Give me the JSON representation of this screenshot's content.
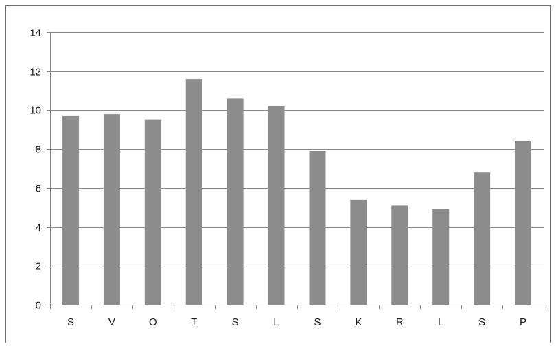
{
  "chart_data": {
    "type": "bar",
    "title": "",
    "xlabel": "",
    "ylabel": "",
    "categories": [
      "S",
      "V",
      "O",
      "T",
      "S",
      "L",
      "S",
      "K",
      "R",
      "L",
      "S",
      "P"
    ],
    "values": [
      9.7,
      9.8,
      9.5,
      11.6,
      10.6,
      10.2,
      7.9,
      5.4,
      5.1,
      4.9,
      6.8,
      8.4
    ],
    "ylim": [
      0,
      14
    ],
    "yticks": [
      0,
      2,
      4,
      6,
      8,
      10,
      12,
      14
    ],
    "grid": true,
    "legend": "none",
    "bar_color": "#8c8c8c",
    "grid_color": "#8a8a8a",
    "axis_color": "#808080"
  }
}
